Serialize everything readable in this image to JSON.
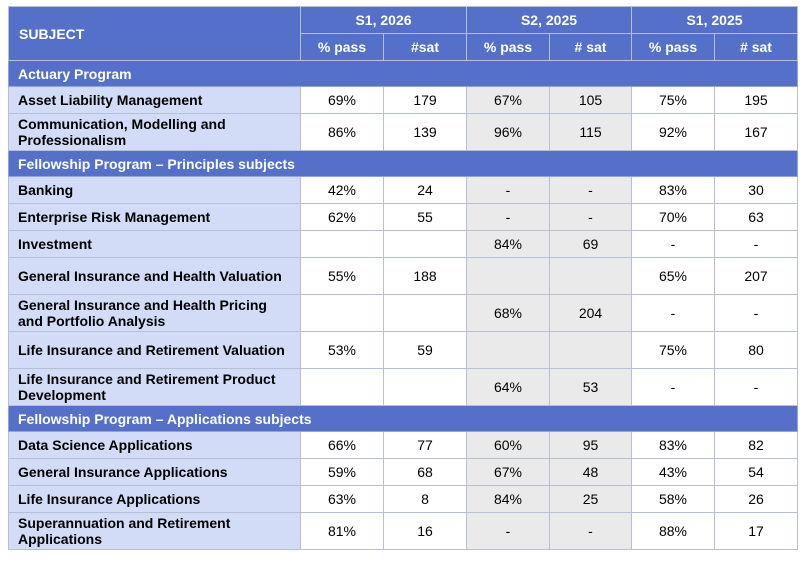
{
  "header": {
    "subject_label": "SUBJECT",
    "periods": [
      "S1, 2026",
      "S2, 2025",
      "S1, 2025"
    ],
    "sub_headers": [
      "% pass",
      "#sat",
      "% pass",
      "# sat",
      "% pass",
      "# sat"
    ]
  },
  "sections": [
    {
      "title": "Actuary Program",
      "rows": [
        {
          "subject": "Asset Liability Management",
          "values": [
            "69%",
            "179",
            "67%",
            "105",
            "75%",
            "195"
          ]
        },
        {
          "subject": "Communication, Modelling and Professionalism",
          "values": [
            "86%",
            "139",
            "96%",
            "115",
            "92%",
            "167"
          ]
        }
      ]
    },
    {
      "title": "Fellowship Program – Principles subjects",
      "rows": [
        {
          "subject": "Banking",
          "values": [
            "42%",
            "24",
            "-",
            "-",
            "83%",
            "30"
          ]
        },
        {
          "subject": "Enterprise Risk Management",
          "values": [
            "62%",
            "55",
            "-",
            "-",
            "70%",
            "63"
          ]
        },
        {
          "subject": "Investment",
          "values": [
            "",
            "",
            "84%",
            "69",
            "-",
            "-"
          ]
        },
        {
          "subject": "General Insurance and Health Valuation",
          "values": [
            "55%",
            "188",
            "",
            "",
            "65%",
            "207"
          ]
        },
        {
          "subject": "General Insurance and Health Pricing and Portfolio Analysis",
          "values": [
            "",
            "",
            "68%",
            "204",
            "-",
            "-"
          ]
        },
        {
          "subject": "Life Insurance and Retirement Valuation",
          "values": [
            "53%",
            "59",
            "",
            "",
            "75%",
            "80"
          ]
        },
        {
          "subject": "Life Insurance and Retirement Product Development",
          "values": [
            "",
            "",
            "64%",
            "53",
            "-",
            "-"
          ]
        }
      ]
    },
    {
      "title": "Fellowship Program – Applications subjects",
      "rows": [
        {
          "subject": "Data Science Applications",
          "values": [
            "66%",
            "77",
            "60%",
            "95",
            "83%",
            "82"
          ]
        },
        {
          "subject": "General Insurance Applications",
          "values": [
            "59%",
            "68",
            "67%",
            "48",
            "43%",
            "54"
          ]
        },
        {
          "subject": "Life Insurance Applications",
          "values": [
            "63%",
            "8",
            "84%",
            "25",
            "58%",
            "26"
          ]
        },
        {
          "subject": "Superannuation and Retirement Applications",
          "values": [
            "81%",
            "16",
            "-",
            "-",
            "88%",
            "17"
          ]
        }
      ]
    }
  ]
}
